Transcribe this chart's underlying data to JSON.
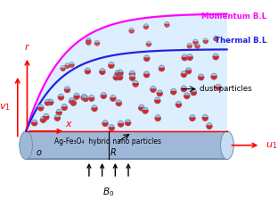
{
  "figsize": [
    3.12,
    2.24
  ],
  "dpi": 100,
  "bg_color": "#ffffff",
  "cylinder_color": "#a0b8d8",
  "cylinder_dark": "#7090b0",
  "cylinder_light": "#c8dcf0",
  "fluid_bg": "#ddeeff",
  "momentum_bl_color": "#ff00ff",
  "thermal_bl_color": "#2222dd",
  "axis_color": "#ff0000",
  "label_momentum": "Momentum B.L",
  "label_thermal": "Thermal B.L",
  "label_dust": "dust particles",
  "label_nano": "Ag-Fe₃O₄  hybrid nano particles",
  "label_B0": "$B_0$",
  "label_u1": "$u_1$",
  "label_v1": "$v_1$",
  "label_r": "$r$",
  "label_x": "$x$",
  "label_o": "$o$",
  "label_R": "$R$",
  "xlim": [
    0,
    10.5
  ],
  "ylim": [
    0,
    7.5
  ]
}
